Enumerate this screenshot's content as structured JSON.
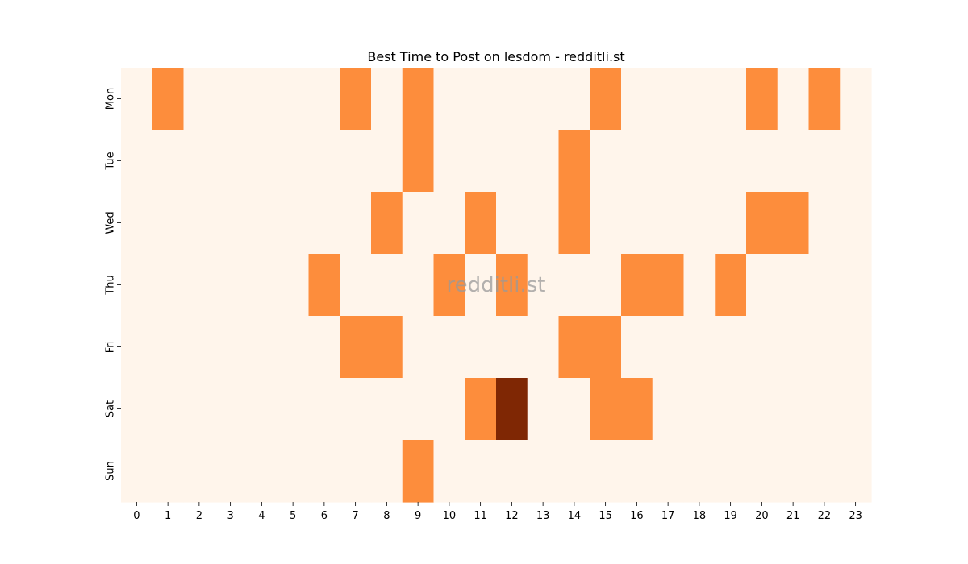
{
  "chart_data": {
    "type": "heatmap",
    "title": "Best Time to Post on lesdom - redditli.st",
    "watermark": "redditli.st",
    "xlabel": "",
    "ylabel": "",
    "x": [
      "0",
      "1",
      "2",
      "3",
      "4",
      "5",
      "6",
      "7",
      "8",
      "9",
      "10",
      "11",
      "12",
      "13",
      "14",
      "15",
      "16",
      "17",
      "18",
      "19",
      "20",
      "21",
      "22",
      "23"
    ],
    "y": [
      "Mon",
      "Tue",
      "Wed",
      "Thu",
      "Fri",
      "Sat",
      "Sun"
    ],
    "values": [
      [
        0,
        1,
        0,
        0,
        0,
        0,
        0,
        1,
        0,
        1,
        0,
        0,
        0,
        0,
        0,
        1,
        0,
        0,
        0,
        0,
        1,
        0,
        1,
        0
      ],
      [
        0,
        0,
        0,
        0,
        0,
        0,
        0,
        0,
        0,
        1,
        0,
        0,
        0,
        0,
        1,
        0,
        0,
        0,
        0,
        0,
        0,
        0,
        0,
        0
      ],
      [
        0,
        0,
        0,
        0,
        0,
        0,
        0,
        0,
        1,
        0,
        0,
        1,
        0,
        0,
        1,
        0,
        0,
        0,
        0,
        0,
        1,
        1,
        0,
        0
      ],
      [
        0,
        0,
        0,
        0,
        0,
        0,
        1,
        0,
        0,
        0,
        1,
        0,
        1,
        0,
        0,
        0,
        1,
        1,
        0,
        1,
        0,
        0,
        0,
        0
      ],
      [
        0,
        0,
        0,
        0,
        0,
        0,
        0,
        1,
        1,
        0,
        0,
        0,
        0,
        0,
        1,
        1,
        0,
        0,
        0,
        0,
        0,
        0,
        0,
        0
      ],
      [
        0,
        0,
        0,
        0,
        0,
        0,
        0,
        0,
        0,
        0,
        0,
        1,
        2,
        0,
        0,
        1,
        1,
        0,
        0,
        0,
        0,
        0,
        0,
        0
      ],
      [
        0,
        0,
        0,
        0,
        0,
        0,
        0,
        0,
        0,
        1,
        0,
        0,
        0,
        0,
        0,
        0,
        0,
        0,
        0,
        0,
        0,
        0,
        0,
        0
      ]
    ],
    "colormap": {
      "0": "#fff5eb",
      "1": "#fd8d3c",
      "2": "#7f2704"
    },
    "colorbar": false,
    "grid": false
  }
}
